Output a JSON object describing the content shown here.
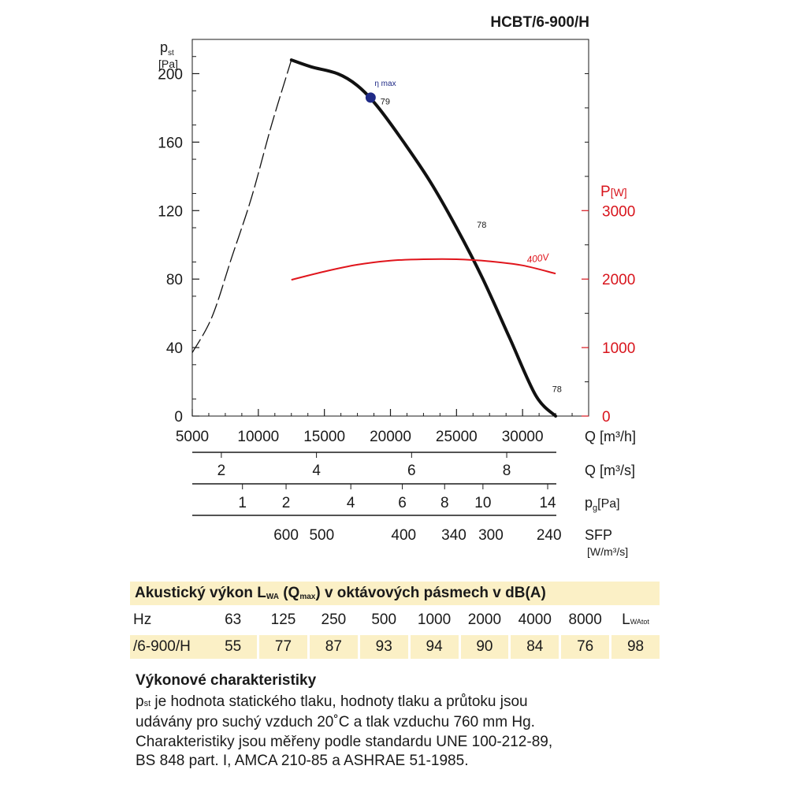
{
  "model": "HCBT/6-900/H",
  "chart_data": {
    "type": "line",
    "left_axis": {
      "symbol": "p",
      "sub": "st",
      "unit": "[Pa]",
      "ylim": [
        0,
        220
      ],
      "ticks": [
        0,
        40,
        80,
        120,
        160,
        200
      ]
    },
    "right_axis": {
      "label": "P",
      "unit": "[W]",
      "ylim": [
        0,
        5500
      ],
      "ticks": [
        0,
        1000,
        2000,
        3000
      ]
    },
    "x_axis": {
      "label": "Q [m³/h]",
      "xlim": [
        5000,
        35000
      ],
      "ticks": [
        5000,
        10000,
        15000,
        20000,
        25000,
        30000
      ]
    },
    "series": [
      {
        "style": "black",
        "x": [
          12500,
          14000,
          16000,
          17500,
          19000,
          21000,
          23000,
          25000,
          27000,
          29000,
          31000,
          32500
        ],
        "y": [
          208,
          204,
          200,
          193,
          181,
          160,
          137,
          110,
          80,
          46,
          12,
          0
        ]
      },
      {
        "style": "dashed",
        "x": [
          5000,
          6500,
          8000,
          9500,
          11000,
          12500
        ],
        "y": [
          37,
          58,
          93,
          128,
          170,
          208
        ]
      },
      {
        "name": "400V",
        "style": "red",
        "axis": "right",
        "x": [
          12500,
          15000,
          17500,
          20000,
          22500,
          25000,
          27500,
          30000,
          32500
        ],
        "y": [
          1990,
          2110,
          2210,
          2270,
          2290,
          2290,
          2260,
          2200,
          2080
        ]
      }
    ],
    "point": {
      "label": "η max",
      "x": 18500,
      "y": 186,
      "value_label": "79"
    },
    "curve_labels": [
      {
        "text": "79",
        "x": 19000,
        "y": 182
      },
      {
        "text": "78",
        "x": 26300,
        "y": 110
      },
      {
        "text": "78",
        "x": 32000,
        "y": 14
      }
    ],
    "extra_scales": [
      {
        "name": "Q",
        "unit": "[m³/s]",
        "labels": [
          "2",
          "4",
          "6",
          "8"
        ],
        "positions_q": [
          7200,
          14400,
          21600,
          28800
        ]
      },
      {
        "name": "p",
        "sub": "g",
        "unit": "[Pa]",
        "labels": [
          "1",
          "2",
          "4",
          "6",
          "8",
          "10",
          "14"
        ],
        "positions_q": [
          8800,
          12100,
          17000,
          20900,
          24100,
          27000,
          31900
        ]
      },
      {
        "name": "SFP",
        "unit": "[W/m³/s]",
        "labels": [
          "600",
          "500",
          "400",
          "340",
          "300",
          "240"
        ],
        "positions_q": [
          12100,
          14800,
          21000,
          24800,
          27600,
          32000
        ]
      }
    ]
  },
  "acoustic": {
    "title_pre": "Akustický výkon L",
    "title_sub1": "WA",
    "title_mid": " (Q",
    "title_sub2": "max",
    "title_post": ") v oktávových pásmech v dB(A)",
    "header_label": "Hz",
    "freqs": [
      "63",
      "125",
      "250",
      "500",
      "1000",
      "2000",
      "4000",
      "8000"
    ],
    "total_label": "L",
    "total_sub": "WAtot",
    "row_label": "/6-900/H",
    "values": [
      "55",
      "77",
      "87",
      "93",
      "94",
      "90",
      "84",
      "76",
      "98"
    ]
  },
  "notes": {
    "title": "Výkonové charakteristiky",
    "line1_sym": "p",
    "line1_sub": "st",
    "line1_rest": " je hodnota statického tlaku, hodnoty tlaku a průtoku jsou",
    "line2": "udávány pro suchý vzduch 20˚C a tlak vzduchu 760 mm Hg.",
    "line3": "Charakteristiky jsou měřeny podle standardu UNE 100-212-89,",
    "line4": "BS 848 part. I, AMCA 210-85 a ASHRAE 51-1985."
  }
}
